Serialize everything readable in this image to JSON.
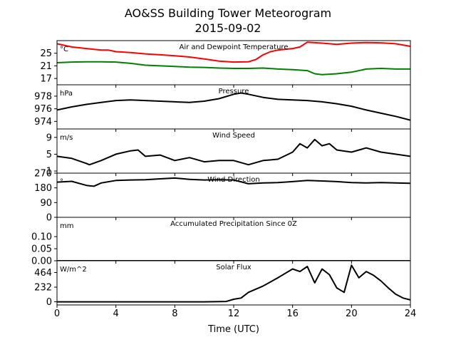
{
  "figure": {
    "title_line1": "AO&SS Building Tower Meteorogram",
    "title_line2": "2015-09-02",
    "xlabel": "Time (UTC)",
    "xticks": [
      0,
      4,
      8,
      12,
      16,
      20,
      24
    ],
    "xlim": [
      0,
      24
    ]
  },
  "chart_data": [
    {
      "type": "line",
      "title": "Air and Dewpoint Temperature",
      "unit": "°C",
      "ylim": [
        15,
        29
      ],
      "yticks": [
        17,
        21,
        25
      ],
      "series": [
        {
          "color": "#ff0000",
          "x": [
            0,
            0.5,
            1,
            2,
            3,
            3.5,
            4,
            5,
            6,
            7,
            8,
            9,
            10,
            11,
            12,
            13,
            13.5,
            14,
            14.5,
            15,
            16,
            16.5,
            17,
            18,
            19,
            20,
            21,
            22,
            23,
            24
          ],
          "values": [
            28,
            27.5,
            27,
            26.5,
            26,
            26,
            25.5,
            25.2,
            24.8,
            24.5,
            24.2,
            23.8,
            23.2,
            22.5,
            22.2,
            22.3,
            23,
            24.5,
            25.5,
            26,
            26.5,
            27,
            28.5,
            28.2,
            27.8,
            28.2,
            28.4,
            28.3,
            28,
            27.2
          ]
        },
        {
          "color": "#008000",
          "x": [
            0,
            1,
            2,
            3,
            4,
            5,
            6,
            7,
            8,
            9,
            10,
            11,
            12,
            13,
            14,
            15,
            16,
            17,
            17.5,
            18,
            19,
            20,
            21,
            22,
            23,
            24
          ],
          "values": [
            22,
            22.2,
            22.3,
            22.3,
            22.2,
            21.8,
            21.2,
            21,
            20.8,
            20.6,
            20.5,
            20.3,
            20.2,
            20.2,
            20.3,
            20,
            19.8,
            19.5,
            18.5,
            18.2,
            18.5,
            19,
            20,
            20.2,
            20,
            20
          ]
        }
      ]
    },
    {
      "type": "line",
      "title": "Pressure",
      "unit": "hPa",
      "ylim": [
        972.8,
        979.8
      ],
      "yticks": [
        974,
        976,
        978
      ],
      "series": [
        {
          "color": "#000000",
          "x": [
            0,
            1,
            2,
            3,
            4,
            5,
            6,
            7,
            8,
            9,
            10,
            11,
            12,
            12.5,
            13,
            14,
            15,
            16,
            17,
            18,
            19,
            20,
            21,
            22,
            23,
            24
          ],
          "values": [
            975.8,
            976.3,
            976.7,
            977,
            977.3,
            977.4,
            977.3,
            977.2,
            977.1,
            977,
            977.2,
            977.6,
            978.3,
            978.5,
            978.3,
            977.8,
            977.5,
            977.4,
            977.3,
            977.1,
            976.8,
            976.4,
            975.8,
            975.3,
            974.8,
            974.2
          ]
        }
      ]
    },
    {
      "type": "line",
      "title": "Wind Speed",
      "unit": "m/s",
      "ylim": [
        0.5,
        11
      ],
      "yticks": [
        1,
        5,
        9
      ],
      "series": [
        {
          "color": "#000000",
          "x": [
            0,
            1,
            2,
            2.2,
            3,
            4,
            5,
            5.5,
            6,
            7,
            8,
            9,
            10,
            11,
            12,
            13,
            14,
            15,
            16,
            16.5,
            17,
            17.5,
            18,
            18.5,
            19,
            20,
            21,
            22,
            23,
            24
          ],
          "values": [
            4.5,
            4,
            2.8,
            2.5,
            3.5,
            5,
            5.8,
            6,
            4.5,
            4.8,
            3.5,
            4.2,
            3.2,
            3.5,
            3.5,
            2.5,
            3.5,
            3.8,
            5.5,
            7.5,
            6.5,
            8.5,
            7,
            7.5,
            6,
            5.5,
            6.5,
            5.5,
            5,
            4.5
          ]
        }
      ]
    },
    {
      "type": "line",
      "title": "Wind Direction",
      "unit": "°",
      "ylim": [
        0,
        270
      ],
      "yticks": [
        0,
        90,
        180,
        270
      ],
      "series": [
        {
          "color": "#000000",
          "x": [
            0,
            1,
            2,
            2.5,
            3,
            4,
            5,
            6,
            7,
            8,
            9,
            10,
            11,
            12,
            13,
            14,
            15,
            16,
            17,
            18,
            19,
            20,
            21,
            22,
            23,
            24
          ],
          "values": [
            215,
            220,
            195,
            190,
            210,
            225,
            228,
            230,
            235,
            240,
            232,
            228,
            230,
            228,
            205,
            210,
            212,
            218,
            225,
            222,
            218,
            212,
            210,
            212,
            210,
            208
          ]
        }
      ]
    },
    {
      "type": "line",
      "title": "Accumulated Precipitation Since 0Z",
      "unit": "mm",
      "ylim": [
        0,
        0.18
      ],
      "yticks": [
        0.0,
        0.05,
        0.1
      ],
      "ytick_labels": [
        "0.00",
        "0.05",
        "0.10"
      ],
      "series": [
        {
          "color": "#000000",
          "x": [
            0,
            24
          ],
          "values": [
            0,
            0
          ]
        }
      ]
    },
    {
      "type": "line",
      "title": "Solar Flux",
      "unit": "W/m^2",
      "ylim": [
        -50,
        650
      ],
      "yticks": [
        0,
        232,
        464
      ],
      "series": [
        {
          "color": "#000000",
          "x": [
            0,
            2,
            4,
            6,
            8,
            10,
            11.5,
            12,
            12.5,
            13,
            14,
            15,
            15.5,
            16,
            16.5,
            17,
            17.5,
            18,
            18.5,
            19,
            19.5,
            20,
            20.5,
            21,
            21.5,
            22,
            22.5,
            23,
            23.5,
            24
          ],
          "values": [
            0,
            0,
            0,
            0,
            0,
            0,
            5,
            40,
            60,
            150,
            250,
            380,
            450,
            520,
            480,
            560,
            300,
            520,
            430,
            220,
            150,
            580,
            380,
            480,
            420,
            330,
            220,
            120,
            60,
            30
          ]
        }
      ]
    }
  ]
}
